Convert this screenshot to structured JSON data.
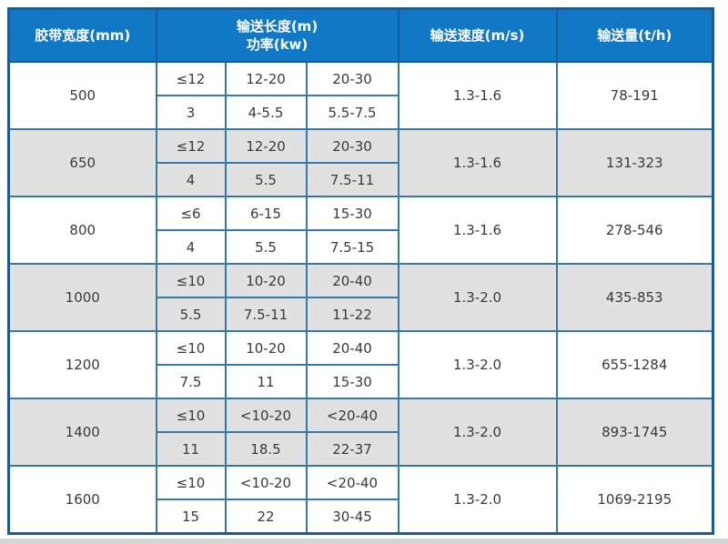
{
  "colors": {
    "header_bg": "#1178c6",
    "header_text": "#ffffff",
    "grid_line": "#3578ad",
    "outer_border": "#1b5a92",
    "alt_row_bg": "#e1e1e1",
    "body_text": "#3a3a3a",
    "bottom_strip_bg": "#d6d6d6"
  },
  "chart_data": {
    "type": "table",
    "columns": {
      "belt_width": "胶带宽度(mm)",
      "length_power": [
        "输送长度(m)",
        "功率(kw)"
      ],
      "speed": "输送速度(m/s)",
      "capacity": "输送量(t/h)"
    },
    "rows": [
      {
        "belt_width": "500",
        "length": [
          "≤12",
          "12-20",
          "20-30"
        ],
        "power": [
          "3",
          "4-5.5",
          "5.5-7.5"
        ],
        "speed": "1.3-1.6",
        "capacity": "78-191"
      },
      {
        "belt_width": "650",
        "length": [
          "≤12",
          "12-20",
          "20-30"
        ],
        "power": [
          "4",
          "5.5",
          "7.5-11"
        ],
        "speed": "1.3-1.6",
        "capacity": "131-323"
      },
      {
        "belt_width": "800",
        "length": [
          "≤6",
          "6-15",
          "15-30"
        ],
        "power": [
          "4",
          "5.5",
          "7.5-15"
        ],
        "speed": "1.3-1.6",
        "capacity": "278-546"
      },
      {
        "belt_width": "1000",
        "length": [
          "≤10",
          "10-20",
          "20-40"
        ],
        "power": [
          "5.5",
          "7.5-11",
          "11-22"
        ],
        "speed": "1.3-2.0",
        "capacity": "435-853"
      },
      {
        "belt_width": "1200",
        "length": [
          "≤10",
          "10-20",
          "20-40"
        ],
        "power": [
          "7.5",
          "11",
          "15-30"
        ],
        "speed": "1.3-2.0",
        "capacity": "655-1284"
      },
      {
        "belt_width": "1400",
        "length": [
          "≤10",
          "<10-20",
          "<20-40"
        ],
        "power": [
          "11",
          "18.5",
          "22-37"
        ],
        "speed": "1.3-2.0",
        "capacity": "893-1745"
      },
      {
        "belt_width": "1600",
        "length": [
          "≤10",
          "<10-20",
          "<20-40"
        ],
        "power": [
          "15",
          "22",
          "30-45"
        ],
        "speed": "1.3-2.0",
        "capacity": "1069-2195"
      }
    ]
  }
}
